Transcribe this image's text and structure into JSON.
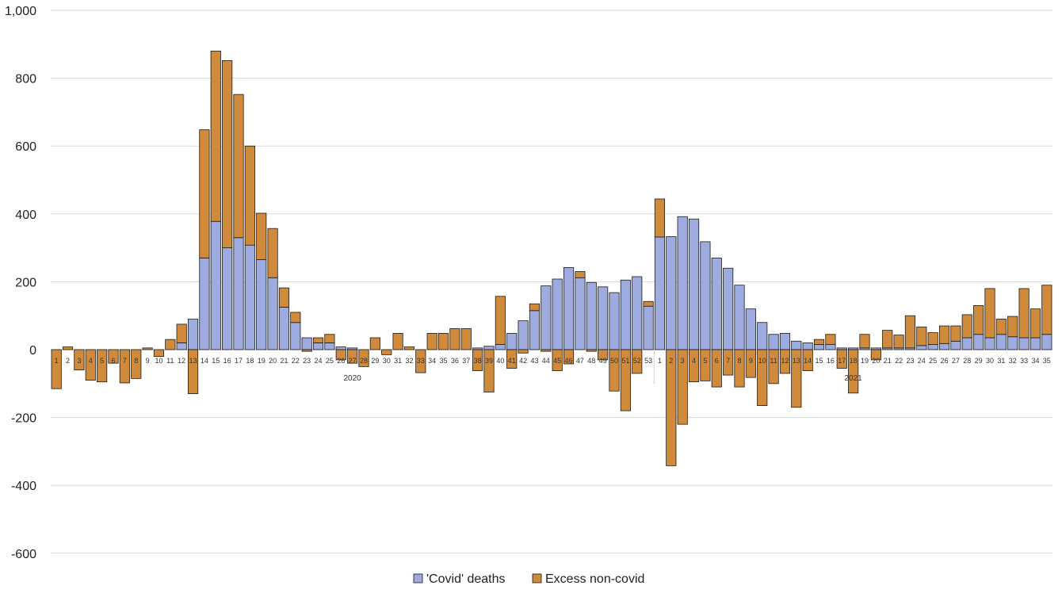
{
  "chart_data": {
    "type": "bar",
    "stacked": true,
    "title": "",
    "xlabel": "",
    "ylabel": "",
    "ylim": [
      -600,
      1000
    ],
    "yticks": [
      -600,
      -400,
      -200,
      0,
      200,
      400,
      600,
      800,
      1000
    ],
    "ytick_labels": [
      "-600",
      "-400",
      "-200",
      "0",
      "200",
      "400",
      "600",
      "800",
      "1,000"
    ],
    "grid": true,
    "legend": "bottom-center",
    "years": [
      {
        "label": "2020",
        "start_index": 0,
        "end_index": 52
      },
      {
        "label": "2021",
        "start_index": 53,
        "end_index": 87
      }
    ],
    "categories": [
      "1",
      "2",
      "3",
      "4",
      "5",
      "6",
      "7",
      "8",
      "9",
      "10",
      "11",
      "12",
      "13",
      "14",
      "15",
      "16",
      "17",
      "18",
      "19",
      "20",
      "21",
      "22",
      "23",
      "24",
      "25",
      "26",
      "27",
      "28",
      "29",
      "30",
      "31",
      "32",
      "33",
      "34",
      "35",
      "36",
      "37",
      "38",
      "39",
      "40",
      "41",
      "42",
      "43",
      "44",
      "45",
      "46",
      "47",
      "48",
      "49",
      "50",
      "51",
      "52",
      "53",
      "1",
      "2",
      "3",
      "4",
      "5",
      "6",
      "7",
      "8",
      "9",
      "10",
      "11",
      "12",
      "13",
      "14",
      "15",
      "16",
      "17",
      "18",
      "19",
      "20",
      "21",
      "22",
      "23",
      "24",
      "25",
      "26",
      "27",
      "28",
      "29",
      "30",
      "31",
      "32",
      "33",
      "34",
      "35"
    ],
    "series": [
      {
        "name": "'Covid' deaths",
        "color": "#9dabde",
        "values": [
          0,
          0,
          0,
          0,
          0,
          0,
          0,
          0,
          0,
          0,
          0,
          20,
          90,
          270,
          378,
          300,
          330,
          308,
          265,
          212,
          125,
          80,
          35,
          20,
          20,
          8,
          5,
          0,
          0,
          0,
          0,
          0,
          0,
          0,
          0,
          0,
          0,
          5,
          10,
          15,
          48,
          85,
          115,
          188,
          208,
          242,
          212,
          198,
          185,
          168,
          205,
          215,
          128,
          332,
          333,
          392,
          385,
          318,
          270,
          240,
          190,
          120,
          80,
          45,
          48,
          25,
          20,
          15,
          15,
          5,
          5,
          5,
          5,
          5,
          5,
          5,
          12,
          15,
          18,
          25,
          35,
          45,
          35,
          45,
          38,
          35,
          35,
          45
        ]
      },
      {
        "name": "Excess non-covid",
        "color": "#d08a3c",
        "values": [
          -115,
          8,
          -60,
          -90,
          -95,
          -40,
          -98,
          -85,
          5,
          -20,
          30,
          55,
          -130,
          378,
          502,
          552,
          422,
          292,
          137,
          145,
          57,
          30,
          -5,
          15,
          25,
          -30,
          -40,
          -50,
          35,
          -15,
          48,
          8,
          -68,
          48,
          48,
          62,
          62,
          -62,
          -125,
          142,
          -55,
          -10,
          20,
          -5,
          -62,
          -42,
          18,
          -5,
          -30,
          -122,
          -180,
          -70,
          14,
          112,
          -342,
          -220,
          -95,
          -92,
          -110,
          -75,
          -110,
          -82,
          -165,
          -100,
          -70,
          -170,
          -62,
          15,
          30,
          -55,
          -128,
          40,
          -30,
          52,
          38,
          95,
          55,
          35,
          52,
          45,
          68,
          85,
          145,
          45,
          60,
          145,
          85,
          145
        ]
      }
    ]
  }
}
